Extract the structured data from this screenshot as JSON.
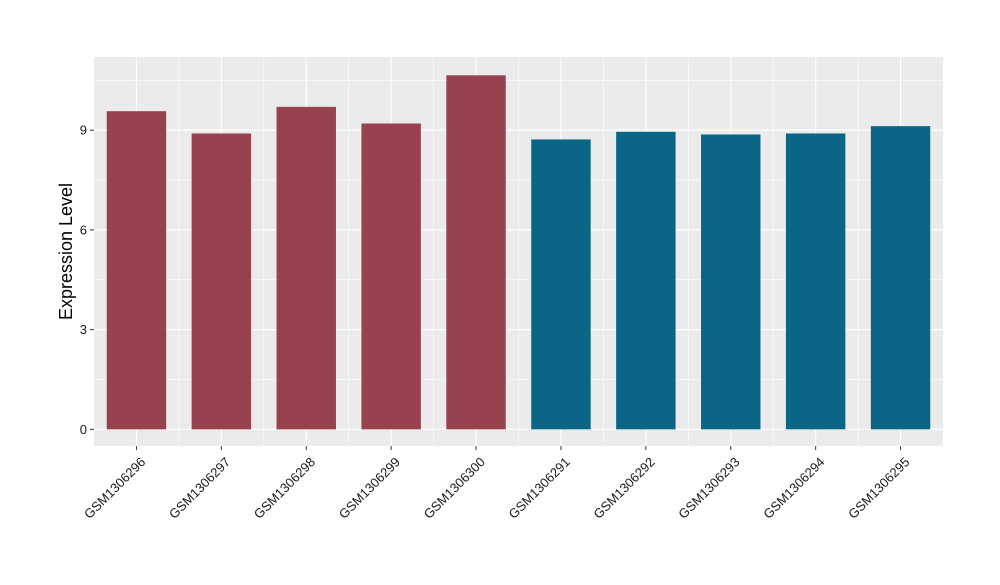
{
  "chart_data": {
    "type": "bar",
    "title": "",
    "xlabel": "",
    "ylabel": "Expression Level",
    "categories": [
      "GSM1306296",
      "GSM1306297",
      "GSM1306298",
      "GSM1306299",
      "GSM1306300",
      "GSM1306291",
      "GSM1306292",
      "GSM1306293",
      "GSM1306294",
      "GSM1306295"
    ],
    "values": [
      9.57,
      8.9,
      9.7,
      9.2,
      10.65,
      8.72,
      8.95,
      8.87,
      8.9,
      9.12
    ],
    "bar_colors": [
      "#99424f",
      "#99424f",
      "#99424f",
      "#99424f",
      "#99424f",
      "#0b6686",
      "#0b6686",
      "#0b6686",
      "#0b6686",
      "#0b6686"
    ],
    "ylim": [
      -0.5,
      11.2
    ],
    "yticks": [
      0,
      3,
      6,
      9
    ],
    "ytick_labels": [
      "0",
      "3",
      "6",
      "9"
    ],
    "grid": true,
    "panel_background": "#ebebeb",
    "grid_color": "#ffffff",
    "legend": "none"
  }
}
